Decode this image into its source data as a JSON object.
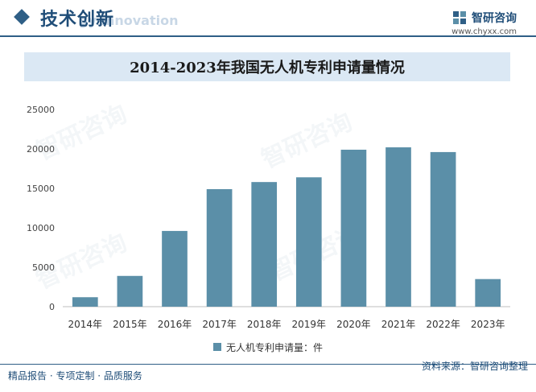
{
  "header": {
    "section_title": "技术创新",
    "section_subtitle": "gy innovation",
    "brand_name": "智研咨询",
    "brand_url": "www.chyxx.com"
  },
  "legend_label": "无人机专利申请量：件",
  "footer": {
    "left": "精品报告 · 专项定制 · 品质服务",
    "right": "资料来源：智研咨询整理"
  },
  "watermark_text": "智研咨询",
  "colors": {
    "bar": "#5b8fa8",
    "accent": "#2f5f86",
    "title_bg": "#dbe8f4"
  },
  "chart_data": {
    "type": "bar",
    "title": "2014-2023年我国无人机专利申请量情况",
    "categories": [
      "2014年",
      "2015年",
      "2016年",
      "2017年",
      "2018年",
      "2019年",
      "2020年",
      "2021年",
      "2022年",
      "2023年"
    ],
    "series": [
      {
        "name": "无人机专利申请量：件",
        "values": [
          1200,
          3900,
          9600,
          14900,
          15800,
          16400,
          19900,
          20200,
          19600,
          3500
        ]
      }
    ],
    "yticks": [
      0,
      5000,
      10000,
      15000,
      20000,
      25000
    ],
    "ylim": [
      0,
      25000
    ],
    "xlabel": "",
    "ylabel": "",
    "grid": false,
    "legend_position": "bottom"
  }
}
